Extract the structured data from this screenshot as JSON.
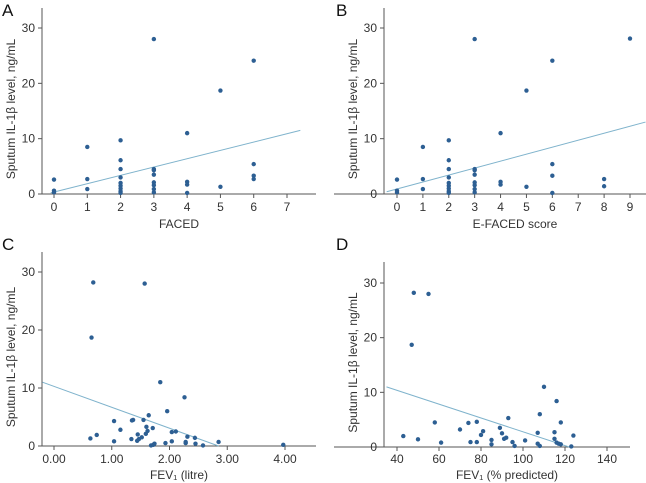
{
  "chart_data": [
    {
      "panel": "A",
      "type": "scatter",
      "xlabel": "FACED",
      "ylabel": "Sputum IL-1β level, ng/mL",
      "xticks": [
        "0",
        "1",
        "2",
        "3",
        "4",
        "5",
        "6",
        "7"
      ],
      "yticks": [
        "0",
        "10",
        "20",
        "30"
      ],
      "xlim": [
        -0.4,
        8.8
      ],
      "ylim": [
        0,
        33
      ],
      "colors": {
        "point": "#2d5f93",
        "fit": "#7fb3cc"
      },
      "fit_line": [
        [
          -0.1,
          0.2
        ],
        [
          7.4,
          11.5
        ]
      ],
      "points": [
        [
          0,
          2.6
        ],
        [
          0,
          0.6
        ],
        [
          0,
          0.3
        ],
        [
          1,
          8.5
        ],
        [
          1,
          2.7
        ],
        [
          1,
          0.9
        ],
        [
          2,
          9.7
        ],
        [
          2,
          6.1
        ],
        [
          2,
          4.5
        ],
        [
          2,
          3
        ],
        [
          2,
          2
        ],
        [
          2,
          1.5
        ],
        [
          2,
          1
        ],
        [
          2,
          0.5
        ],
        [
          2,
          0.2
        ],
        [
          3,
          28
        ],
        [
          3,
          4.5
        ],
        [
          3,
          4.3
        ],
        [
          3,
          3.5
        ],
        [
          3,
          2.1
        ],
        [
          3,
          1.6
        ],
        [
          3,
          0.9
        ],
        [
          3,
          0.3
        ],
        [
          4,
          11
        ],
        [
          4,
          2.2
        ],
        [
          4,
          1.7
        ],
        [
          4,
          0.2
        ],
        [
          5,
          18.7
        ],
        [
          5,
          1.3
        ],
        [
          6,
          24.1
        ],
        [
          6,
          5.4
        ],
        [
          6,
          3.3
        ],
        [
          6,
          2.7
        ]
      ]
    },
    {
      "panel": "B",
      "type": "scatter",
      "xlabel": "E-FACED score",
      "ylabel": "Sputum IL-1β level, ng/mL",
      "xticks": [
        "0",
        "1",
        "2",
        "3",
        "4",
        "5",
        "6",
        "7",
        "8",
        "9"
      ],
      "yticks": [
        "0",
        "10",
        "20",
        "30"
      ],
      "xlim": [
        -0.5,
        9.6
      ],
      "ylim": [
        0,
        33
      ],
      "colors": {
        "point": "#2d5f93",
        "fit": "#7fb3cc"
      },
      "fit_line": [
        [
          -0.4,
          0.4
        ],
        [
          9.6,
          13
        ]
      ],
      "points": [
        [
          0,
          2.6
        ],
        [
          0,
          0.6
        ],
        [
          0,
          0.3
        ],
        [
          1,
          8.5
        ],
        [
          1,
          2.7
        ],
        [
          1,
          0.9
        ],
        [
          2,
          9.7
        ],
        [
          2,
          6.1
        ],
        [
          2,
          4.5
        ],
        [
          2,
          3
        ],
        [
          2,
          2
        ],
        [
          2,
          1.5
        ],
        [
          2,
          1
        ],
        [
          2,
          0.5
        ],
        [
          2,
          0.2
        ],
        [
          3,
          28
        ],
        [
          3,
          4.5
        ],
        [
          3,
          4.3
        ],
        [
          3,
          3.5
        ],
        [
          3,
          2.1
        ],
        [
          3,
          1.6
        ],
        [
          3,
          0.9
        ],
        [
          3,
          0.3
        ],
        [
          4,
          11
        ],
        [
          4,
          2.2
        ],
        [
          4,
          1.7
        ],
        [
          5,
          18.7
        ],
        [
          5,
          1.3
        ],
        [
          6,
          24.1
        ],
        [
          6,
          5.4
        ],
        [
          6,
          3.3
        ],
        [
          6,
          0.2
        ],
        [
          8,
          2.7
        ],
        [
          8,
          1.4
        ],
        [
          9,
          28.1
        ]
      ]
    },
    {
      "panel": "C",
      "type": "scatter",
      "xlabel": "FEV₁ (litre)",
      "ylabel": "Sputum IL-1β level, ng/mL",
      "xticks": [
        "0.00",
        "1.00",
        "2.00",
        "3.00",
        "4.00"
      ],
      "xtick_values": [
        0,
        1,
        2,
        3,
        4
      ],
      "yticks": [
        "0",
        "10",
        "20",
        "30"
      ],
      "xlim": [
        -0.2,
        4.55
      ],
      "ylim": [
        0,
        33
      ],
      "colors": {
        "point": "#2d5f93",
        "fit": "#7fb3cc"
      },
      "fit_line": [
        [
          -0.2,
          11
        ],
        [
          2.85,
          0
        ]
      ],
      "points": [
        [
          0.63,
          1.3
        ],
        [
          0.68,
          28.2
        ],
        [
          0.65,
          18.7
        ],
        [
          0.74,
          1.9
        ],
        [
          1.04,
          4.3
        ],
        [
          1.04,
          0.8
        ],
        [
          1.15,
          2.8
        ],
        [
          1.34,
          1.2
        ],
        [
          1.35,
          4.4
        ],
        [
          1.37,
          4.5
        ],
        [
          1.44,
          0.9
        ],
        [
          1.45,
          2.0
        ],
        [
          1.47,
          1.2
        ],
        [
          1.52,
          1.5
        ],
        [
          1.55,
          4.5
        ],
        [
          1.57,
          28
        ],
        [
          1.59,
          2.1
        ],
        [
          1.6,
          3.3
        ],
        [
          1.62,
          2.6
        ],
        [
          1.64,
          5.3
        ],
        [
          1.68,
          0.1
        ],
        [
          1.71,
          3.1
        ],
        [
          1.72,
          0.2
        ],
        [
          1.74,
          0.4
        ],
        [
          1.84,
          11
        ],
        [
          1.93,
          0.5
        ],
        [
          1.96,
          6
        ],
        [
          2.04,
          2.4
        ],
        [
          2.04,
          0.8
        ],
        [
          2.11,
          2.5
        ],
        [
          2.26,
          8.4
        ],
        [
          2.28,
          0.5
        ],
        [
          2.28,
          0.7
        ],
        [
          2.31,
          1.6
        ],
        [
          2.44,
          1.4
        ],
        [
          2.45,
          0.4
        ],
        [
          2.58,
          0.1
        ],
        [
          2.85,
          0.7
        ],
        [
          3.97,
          0.2
        ]
      ]
    },
    {
      "panel": "D",
      "type": "scatter",
      "xlabel": "FEV₁ (% predicted)",
      "ylabel": "Sputum IL-1β level, ng/mL",
      "xticks": [
        "40",
        "60",
        "80",
        "100",
        "120",
        "140"
      ],
      "xtick_values": [
        40,
        60,
        80,
        100,
        120,
        140
      ],
      "yticks": [
        "0",
        "10",
        "20",
        "30"
      ],
      "xlim": [
        34,
        151
      ],
      "ylim": [
        0,
        33
      ],
      "colors": {
        "point": "#2d5f93",
        "fit": "#7fb3cc"
      },
      "fit_line": [
        [
          35,
          11
        ],
        [
          122,
          0
        ]
      ],
      "points": [
        [
          43,
          2
        ],
        [
          47,
          18.7
        ],
        [
          48,
          28.2
        ],
        [
          50,
          1.4
        ],
        [
          55,
          28
        ],
        [
          58,
          4.5
        ],
        [
          61,
          0.8
        ],
        [
          70,
          3.2
        ],
        [
          74,
          4.4
        ],
        [
          75,
          0.9
        ],
        [
          78,
          4.6
        ],
        [
          78,
          0.9
        ],
        [
          80,
          2.2
        ],
        [
          81,
          2.9
        ],
        [
          85,
          1.3
        ],
        [
          85,
          0.5
        ],
        [
          89,
          3.5
        ],
        [
          90,
          2.5
        ],
        [
          91,
          1.5
        ],
        [
          92,
          1.7
        ],
        [
          93,
          5.3
        ],
        [
          95,
          0.9
        ],
        [
          96,
          0.2
        ],
        [
          101,
          1.2
        ],
        [
          107,
          2.6
        ],
        [
          107,
          0.6
        ],
        [
          108,
          6
        ],
        [
          108,
          0.2
        ],
        [
          110,
          11
        ],
        [
          115,
          2.7
        ],
        [
          115,
          1.5
        ],
        [
          116,
          8.4
        ],
        [
          116,
          0.8
        ],
        [
          117,
          0.6
        ],
        [
          118,
          0.5
        ],
        [
          118,
          4.5
        ],
        [
          123,
          0.1
        ],
        [
          124,
          2.1
        ]
      ]
    }
  ]
}
